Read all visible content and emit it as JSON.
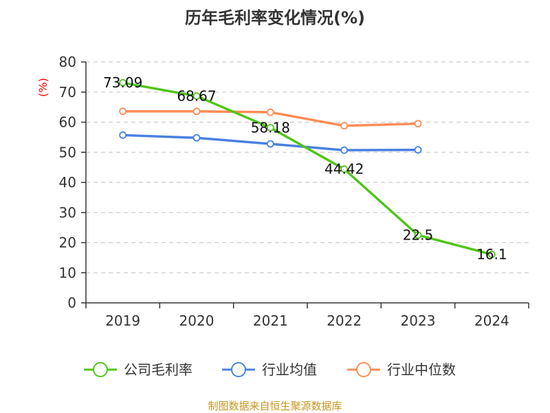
{
  "chart_data": {
    "type": "line",
    "title": "历年毛利率变化情况(%)",
    "ylabel": "(%)",
    "xlabel": "",
    "categories": [
      "2019",
      "2020",
      "2021",
      "2022",
      "2023",
      "2024"
    ],
    "ylim": [
      0,
      80
    ],
    "yticks": [
      0,
      10,
      20,
      30,
      40,
      50,
      60,
      70,
      80
    ],
    "grid": true,
    "legend_position": "bottom",
    "series": [
      {
        "name": "公司毛利率",
        "color": "#52c41a",
        "values": [
          73.09,
          68.67,
          58.18,
          44.42,
          22.5,
          16.1
        ],
        "labels": [
          "73.09",
          "68.67",
          "58.18",
          "44.42",
          "22.5",
          "16.1"
        ]
      },
      {
        "name": "行业均值",
        "color": "#4a80e0",
        "values": [
          55.7,
          54.8,
          52.8,
          50.7,
          50.8,
          null
        ]
      },
      {
        "name": "行业中位数",
        "color": "#ff8c55",
        "values": [
          63.6,
          63.6,
          63.3,
          58.8,
          59.5,
          null
        ]
      }
    ]
  },
  "source": "制图数据来自恒生聚源数据库"
}
